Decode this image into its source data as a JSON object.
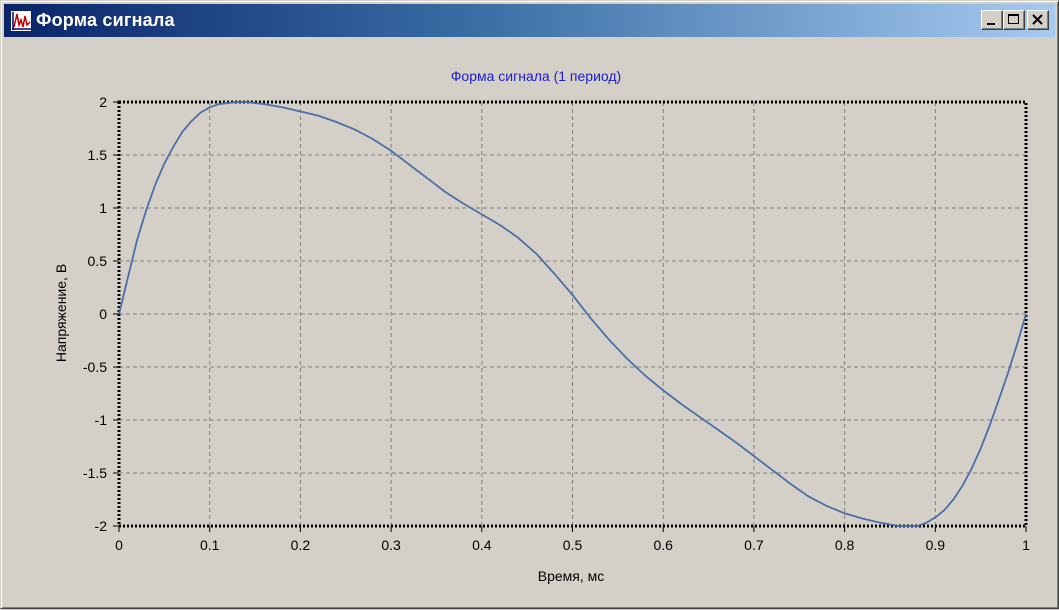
{
  "window": {
    "title": "Форма сигнала",
    "icon": "waveform-app-icon",
    "buttons": [
      "minimize",
      "maximize",
      "close"
    ]
  },
  "colors": {
    "title_text": "#1c1ccc",
    "curve": "#4a6ea8",
    "background": "#d4d0c8",
    "grid": "#808080"
  },
  "chart_data": {
    "type": "line",
    "title": "Форма сигнала (1 период)",
    "xlabel": "Время, мс",
    "ylabel": "Напряжение, В",
    "xlim": [
      0,
      1
    ],
    "ylim": [
      -2,
      2
    ],
    "grid": true,
    "legend": false,
    "x_ticks": [
      "0",
      "0.1",
      "0.2",
      "0.3",
      "0.4",
      "0.5",
      "0.6",
      "0.7",
      "0.8",
      "0.9",
      "1"
    ],
    "y_ticks": [
      "2",
      "1.5",
      "1",
      "0.5",
      "0",
      "-0.5",
      "-1",
      "-1.5",
      "-2"
    ],
    "series": [
      {
        "x": [
          0,
          0.01,
          0.02,
          0.03,
          0.04,
          0.05,
          0.06,
          0.07,
          0.08,
          0.09,
          0.1,
          0.11,
          0.12,
          0.13,
          0.14,
          0.15,
          0.16,
          0.18,
          0.2,
          0.22,
          0.24,
          0.26,
          0.28,
          0.3,
          0.32,
          0.34,
          0.36,
          0.38,
          0.4,
          0.42,
          0.44,
          0.46,
          0.48,
          0.5,
          0.52,
          0.54,
          0.56,
          0.58,
          0.6,
          0.62,
          0.64,
          0.66,
          0.68,
          0.7,
          0.72,
          0.74,
          0.76,
          0.78,
          0.8,
          0.82,
          0.84,
          0.86,
          0.87,
          0.88,
          0.89,
          0.9,
          0.91,
          0.92,
          0.93,
          0.94,
          0.95,
          0.96,
          0.97,
          0.98,
          0.99,
          1.0
        ],
        "y": [
          0,
          0.35,
          0.7,
          0.98,
          1.22,
          1.42,
          1.58,
          1.72,
          1.82,
          1.9,
          1.95,
          1.98,
          1.99,
          2.0,
          2.0,
          1.99,
          1.98,
          1.95,
          1.91,
          1.87,
          1.81,
          1.74,
          1.65,
          1.54,
          1.41,
          1.28,
          1.15,
          1.04,
          0.94,
          0.84,
          0.72,
          0.57,
          0.38,
          0.18,
          -0.04,
          -0.24,
          -0.42,
          -0.58,
          -0.72,
          -0.85,
          -0.97,
          -1.09,
          -1.21,
          -1.34,
          -1.47,
          -1.6,
          -1.72,
          -1.81,
          -1.88,
          -1.93,
          -1.97,
          -2.0,
          -2.0,
          -2.0,
          -1.97,
          -1.92,
          -1.85,
          -1.75,
          -1.62,
          -1.46,
          -1.27,
          -1.05,
          -0.81,
          -0.56,
          -0.29,
          0
        ]
      }
    ]
  }
}
